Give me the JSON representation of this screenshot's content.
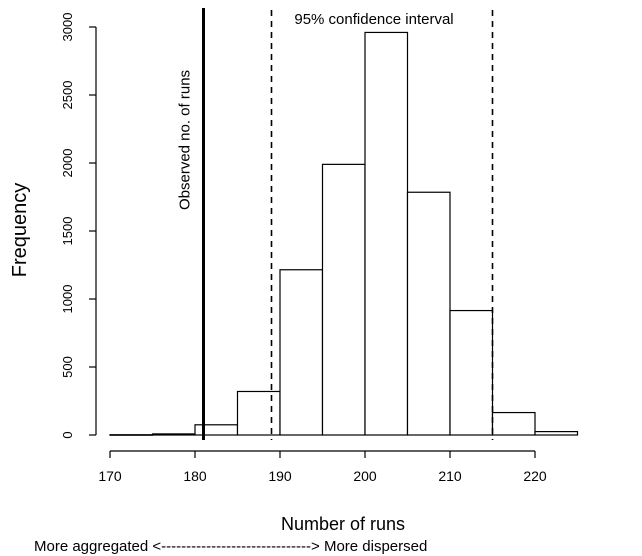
{
  "chart_data": {
    "type": "bar",
    "subtype": "histogram",
    "bin_edges": [
      170,
      175,
      180,
      185,
      190,
      195,
      200,
      205,
      210,
      215,
      220,
      225
    ],
    "values": [
      2,
      8,
      75,
      320,
      1215,
      1990,
      2960,
      1785,
      915,
      165,
      25
    ],
    "xlabel": "Number of runs",
    "ylabel": "Frequency",
    "xlim": [
      170,
      225
    ],
    "ylim": [
      0,
      3000
    ],
    "x_ticks": [
      170,
      180,
      190,
      200,
      210,
      220
    ],
    "y_ticks": [
      0,
      500,
      1000,
      1500,
      2000,
      2500,
      3000
    ],
    "grid": false,
    "observed": {
      "value": 181,
      "label": "Observed no. of runs"
    },
    "confidence_interval": {
      "lower": 189,
      "upper": 215,
      "label": "95% confidence interval"
    },
    "direction_note": "More aggregated <------------------------------> More dispersed"
  }
}
